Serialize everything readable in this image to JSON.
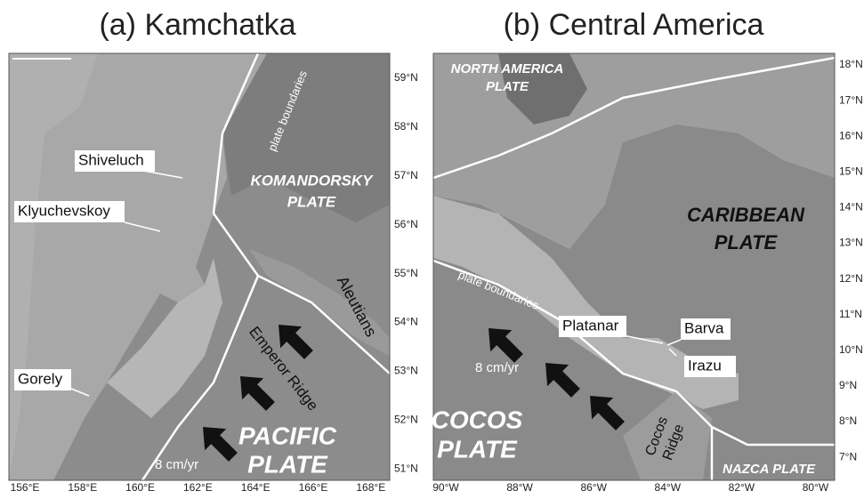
{
  "panels": [
    {
      "title": "(a) Kamchatka",
      "lat_labels": [
        "59°N",
        "58°N",
        "57°N",
        "56°N",
        "55°N",
        "54°N",
        "53°N",
        "52°N",
        "51°N"
      ],
      "lon_labels": [
        "156°E",
        "158°E",
        "160°E",
        "162°E",
        "164°E",
        "166°E",
        "168°E"
      ],
      "labels": {
        "shiveluch": "Shiveluch",
        "klyuchevskoy": "Klyuchevskoy",
        "gorely": "Gorely",
        "boundaries": "plate boundaries",
        "komandorsky": [
          "KOMANDORSKY",
          "PLATE"
        ],
        "aleutians": "Aleutians",
        "emperor": "Emperor Ridge",
        "pacific": [
          "PACIFIC",
          "PLATE"
        ],
        "rate": "8 cm/yr"
      }
    },
    {
      "title": "(b) Central America",
      "lat_labels": [
        "18°N",
        "17°N",
        "16°N",
        "15°N",
        "14°N",
        "13°N",
        "12°N",
        "11°N",
        "10°N",
        "9°N",
        "8°N",
        "7°N"
      ],
      "lon_labels": [
        "90°W",
        "88°W",
        "86°W",
        "84°W",
        "82°W",
        "80°W"
      ],
      "labels": {
        "north_america": [
          "NORTH AMERICA",
          "PLATE"
        ],
        "caribbean": [
          "CARIBBEAN",
          "PLATE"
        ],
        "boundaries": "plate boundaries",
        "platanar": "Platanar",
        "barva": "Barva",
        "irazu": "Irazu",
        "rate": "8 cm/yr",
        "cocos": [
          "COCOS",
          "PLATE"
        ],
        "cocos_ridge": [
          "Cocos",
          "Ridge"
        ],
        "nazca": "NAZCA PLATE"
      }
    }
  ]
}
